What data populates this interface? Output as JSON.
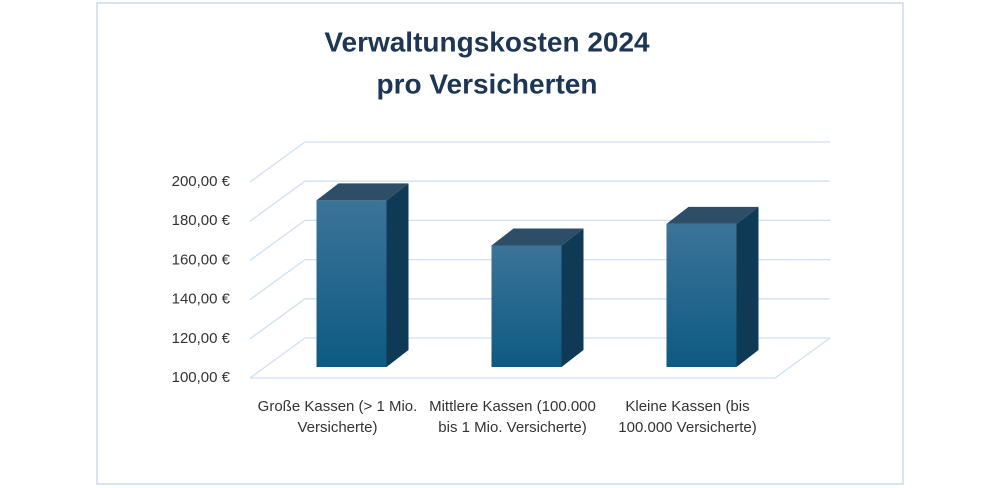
{
  "chart_data": {
    "type": "bar3d",
    "title": [
      "Verwaltungskosten 2024",
      "pro Versicherten"
    ],
    "categories": [
      "Große Kassen (> 1 Mio. Versicherte)",
      "Mittlere Kassen (100.000 bis 1 Mio. Versicherte)",
      "Kleine Kassen (bis 100.000 Versicherte)"
    ],
    "values": [
      185,
      162,
      173
    ],
    "color": "#15618a",
    "ylim": [
      100,
      200
    ],
    "yticks": [
      {
        "value": 100,
        "label": "100,00 €"
      },
      {
        "value": 120,
        "label": "120,00 €"
      },
      {
        "value": 140,
        "label": "140,00 €"
      },
      {
        "value": 160,
        "label": "160,00 €"
      },
      {
        "value": 180,
        "label": "180,00 €"
      },
      {
        "value": 200,
        "label": "200,00 €"
      }
    ],
    "grid": true
  }
}
